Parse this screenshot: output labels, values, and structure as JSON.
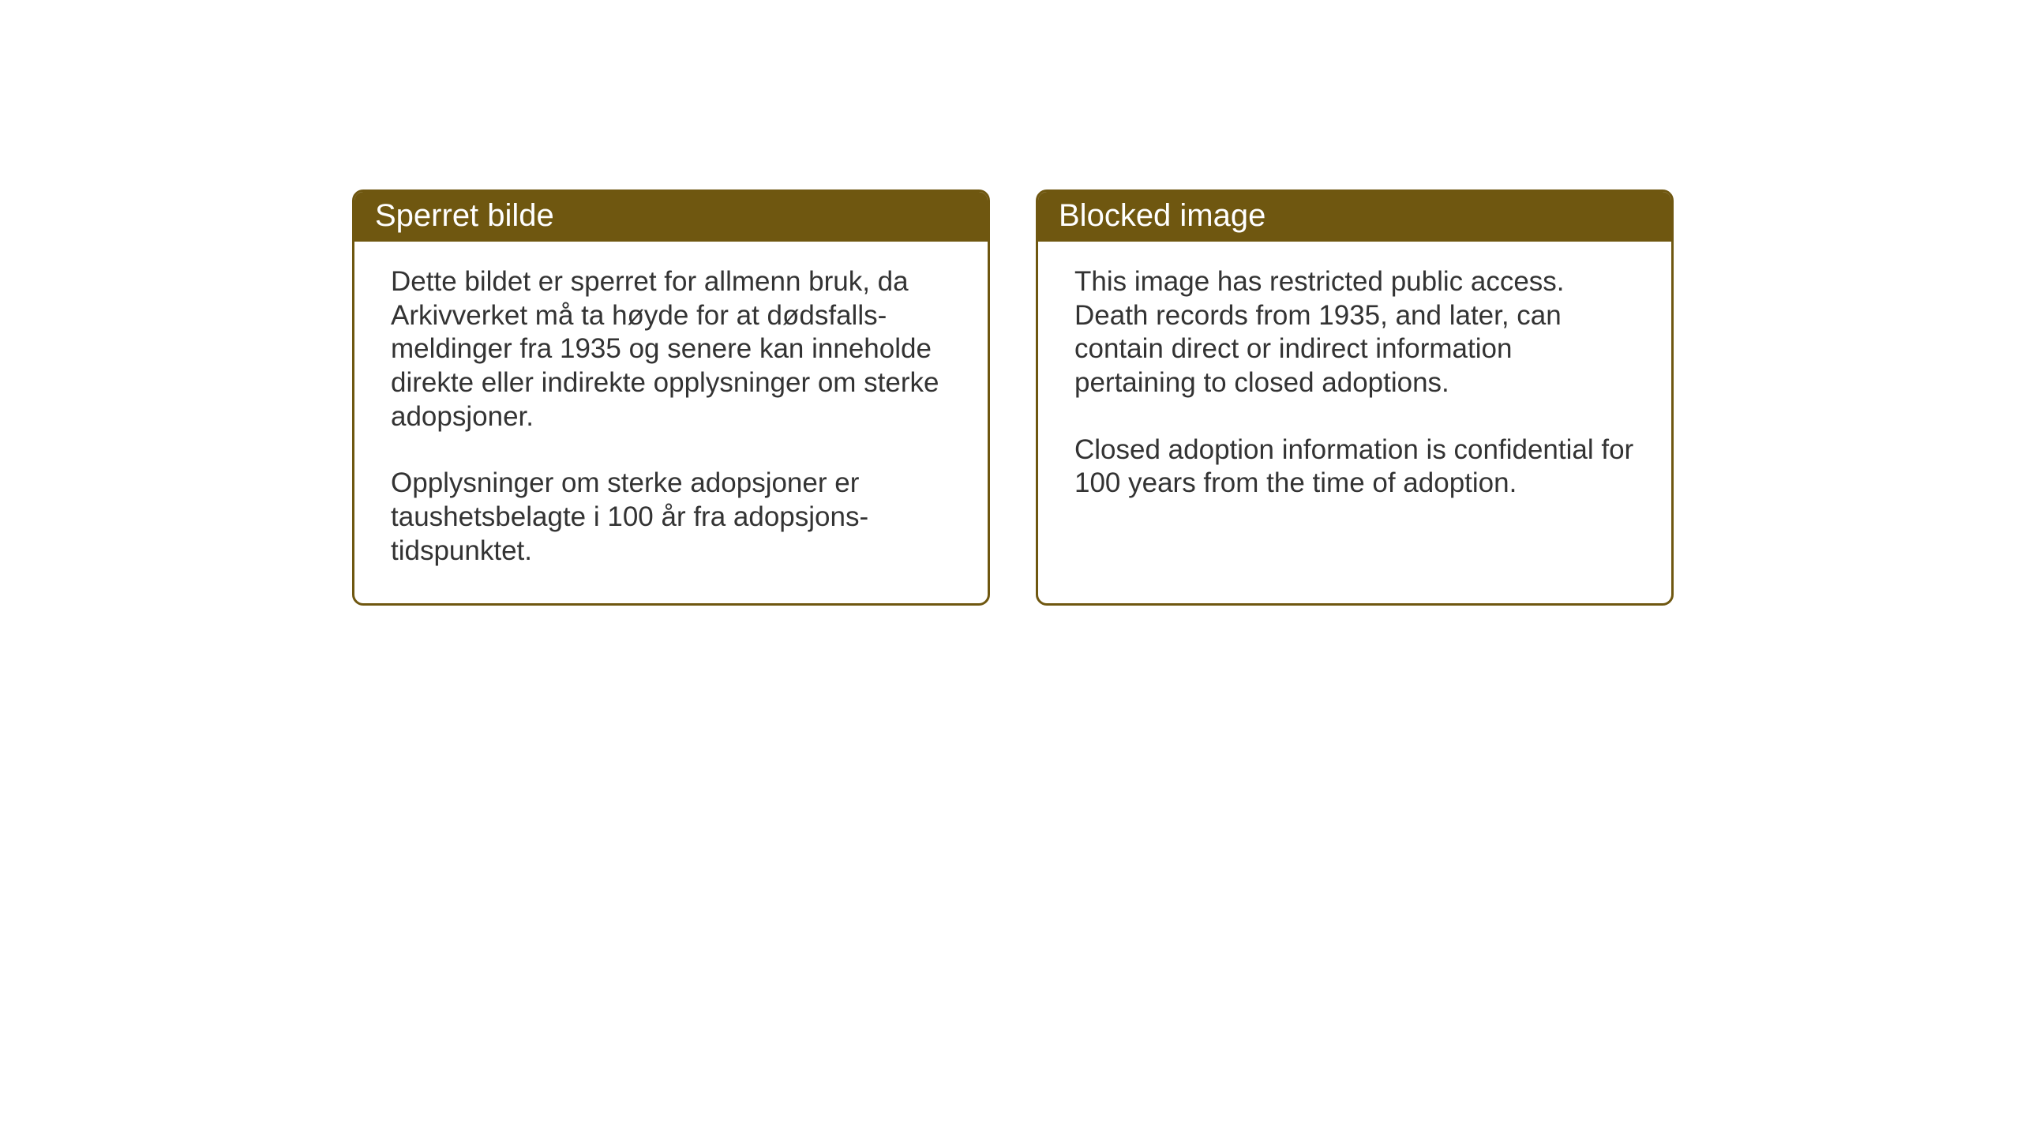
{
  "layout": {
    "background_color": "#ffffff",
    "box_border_color": "#6f5710",
    "header_background_color": "#6f5710",
    "header_text_color": "#ffffff",
    "body_text_color": "#333333",
    "header_font_size": 40,
    "body_font_size": 35,
    "border_radius": 14,
    "border_width": 3
  },
  "boxes": {
    "norwegian": {
      "title": "Sperret bilde",
      "paragraph1": "Dette bildet er sperret for allmenn bruk, da Arkivverket må ta høyde for at dødsfalls-meldinger fra 1935 og senere kan inneholde direkte eller indirekte opplysninger om sterke adopsjoner.",
      "paragraph2": "Opplysninger om sterke adopsjoner er taushetsbelagte i 100 år fra adopsjons-tidspunktet."
    },
    "english": {
      "title": "Blocked image",
      "paragraph1": "This image has restricted public access. Death records from 1935, and later, can contain direct or indirect information pertaining to closed adoptions.",
      "paragraph2": "Closed adoption information is confidential for 100 years from the time of adoption."
    }
  }
}
